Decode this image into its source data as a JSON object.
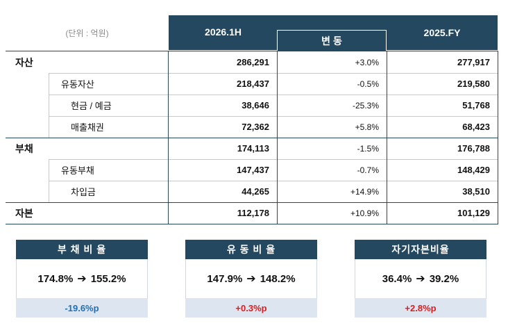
{
  "header": {
    "unit": "(단위 : 억원)",
    "col_2026": "2026.1H",
    "col_change": "변 동",
    "col_2025": "2025.FY"
  },
  "rows": [
    {
      "label": "자산",
      "level": 0,
      "v2026": "286,291",
      "change": "+3.0%",
      "v2025": "277,917"
    },
    {
      "label": "유동자산",
      "level": 1,
      "v2026": "218,437",
      "change": "-0.5%",
      "v2025": "219,580"
    },
    {
      "label": "현금 / 예금",
      "level": 2,
      "v2026": "38,646",
      "change": "-25.3%",
      "v2025": "51,768"
    },
    {
      "label": "매출채권",
      "level": 2,
      "v2026": "72,362",
      "change": "+5.8%",
      "v2025": "68,423"
    },
    {
      "label": "부채",
      "level": 0,
      "v2026": "174,113",
      "change": "-1.5%",
      "v2025": "176,788"
    },
    {
      "label": "유동부채",
      "level": 1,
      "v2026": "147,437",
      "change": "-0.7%",
      "v2025": "148,429"
    },
    {
      "label": "차입금",
      "level": 2,
      "v2026": "44,265",
      "change": "+14.9%",
      "v2025": "38,510"
    },
    {
      "label": "자본",
      "level": 0,
      "v2026": "112,178",
      "change": "+10.9%",
      "v2025": "101,129"
    }
  ],
  "cards": [
    {
      "title": "부 채 비 율",
      "from": "174.8%",
      "to": "155.2%",
      "delta": "-19.6%p",
      "delta_color": "#1f6fb5"
    },
    {
      "title": "유 동 비 율",
      "from": "147.9%",
      "to": "148.2%",
      "delta": "+0.3%p",
      "delta_color": "#e01b1b"
    },
    {
      "title": "자기자본비율",
      "from": "36.4%",
      "to": "39.2%",
      "delta": "+2.8%p",
      "delta_color": "#e01b1b"
    }
  ],
  "colors": {
    "navy": "#24485f",
    "light_blue": "#dde5f0"
  }
}
